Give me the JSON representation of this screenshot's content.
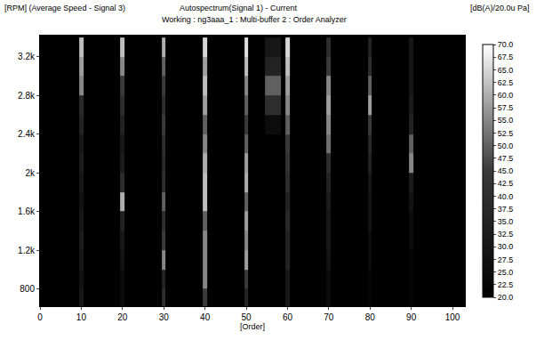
{
  "chart_data": {
    "type": "heatmap",
    "title": "Autospectrum(Signal 1) - Current",
    "subtitle": "Working : ng3aaa_1 : Multi-buffer 2 : Order Analyzer",
    "y_label": "[RPM] (Average Speed - Signal 3)",
    "x_label": "[Order]",
    "colorbar_title": "[dB(A)/20.0u Pa]",
    "x": [
      0,
      9,
      10,
      11,
      19,
      20,
      21,
      29,
      30,
      31,
      39,
      40,
      41,
      49,
      50,
      51,
      58,
      59,
      60,
      61,
      69,
      70,
      71,
      79,
      80,
      81,
      89,
      90,
      91,
      100
    ],
    "y": [
      700,
      900,
      1100,
      1300,
      1500,
      1700,
      1900,
      2100,
      2300,
      2500,
      2700,
      2900,
      3100,
      3300
    ],
    "z": [
      [
        20,
        20,
        30,
        20,
        20,
        25,
        20,
        20,
        40,
        20,
        20,
        45,
        20,
        20,
        35,
        20,
        20,
        20,
        30,
        20,
        20,
        25,
        20,
        20,
        22,
        20,
        20,
        22,
        20,
        20
      ],
      [
        20,
        20,
        28,
        20,
        20,
        25,
        20,
        20,
        35,
        20,
        20,
        55,
        20,
        20,
        45,
        20,
        20,
        20,
        30,
        20,
        20,
        25,
        20,
        20,
        22,
        20,
        20,
        22,
        20,
        20
      ],
      [
        20,
        20,
        30,
        20,
        20,
        28,
        20,
        20,
        55,
        20,
        20,
        55,
        20,
        20,
        58,
        20,
        20,
        20,
        35,
        20,
        20,
        28,
        20,
        20,
        25,
        20,
        20,
        22,
        20,
        20
      ],
      [
        20,
        20,
        32,
        20,
        20,
        30,
        20,
        20,
        45,
        20,
        20,
        55,
        20,
        20,
        55,
        20,
        20,
        20,
        35,
        20,
        20,
        30,
        20,
        20,
        25,
        20,
        20,
        25,
        20,
        20
      ],
      [
        20,
        20,
        30,
        20,
        20,
        35,
        20,
        20,
        40,
        20,
        20,
        50,
        20,
        20,
        58,
        20,
        20,
        20,
        38,
        20,
        20,
        30,
        20,
        20,
        28,
        20,
        20,
        25,
        20,
        20
      ],
      [
        20,
        20,
        28,
        20,
        20,
        60,
        20,
        20,
        50,
        20,
        20,
        62,
        20,
        20,
        50,
        20,
        20,
        20,
        35,
        20,
        20,
        32,
        20,
        20,
        28,
        20,
        20,
        28,
        20,
        20
      ],
      [
        20,
        20,
        30,
        20,
        20,
        40,
        20,
        20,
        40,
        20,
        20,
        62,
        20,
        20,
        60,
        20,
        20,
        20,
        40,
        20,
        20,
        35,
        20,
        20,
        30,
        20,
        20,
        32,
        20,
        20
      ],
      [
        20,
        20,
        32,
        20,
        20,
        32,
        20,
        20,
        38,
        20,
        20,
        60,
        20,
        20,
        58,
        20,
        20,
        20,
        42,
        20,
        20,
        40,
        20,
        20,
        35,
        20,
        20,
        55,
        20,
        20
      ],
      [
        20,
        20,
        30,
        20,
        20,
        30,
        20,
        20,
        40,
        20,
        20,
        55,
        20,
        20,
        50,
        20,
        20,
        20,
        45,
        20,
        20,
        52,
        20,
        20,
        38,
        20,
        20,
        50,
        20,
        20
      ],
      [
        20,
        20,
        35,
        20,
        20,
        35,
        20,
        20,
        45,
        20,
        20,
        50,
        20,
        20,
        45,
        20,
        25,
        20,
        50,
        20,
        20,
        55,
        20,
        20,
        45,
        20,
        20,
        35,
        20,
        20
      ],
      [
        20,
        20,
        38,
        20,
        20,
        40,
        20,
        20,
        40,
        20,
        20,
        58,
        20,
        20,
        50,
        20,
        40,
        20,
        55,
        20,
        20,
        58,
        20,
        20,
        58,
        20,
        20,
        32,
        20,
        20
      ],
      [
        20,
        20,
        55,
        20,
        20,
        45,
        20,
        20,
        45,
        20,
        20,
        62,
        20,
        20,
        55,
        20,
        50,
        20,
        58,
        20,
        20,
        55,
        20,
        20,
        50,
        20,
        20,
        30,
        20,
        20
      ],
      [
        20,
        20,
        58,
        20,
        20,
        55,
        20,
        20,
        50,
        20,
        20,
        58,
        20,
        20,
        62,
        20,
        35,
        20,
        62,
        20,
        20,
        45,
        20,
        20,
        40,
        20,
        20,
        30,
        20,
        20
      ],
      [
        20,
        20,
        62,
        20,
        20,
        62,
        20,
        20,
        60,
        20,
        20,
        65,
        20,
        20,
        66,
        20,
        30,
        20,
        65,
        20,
        20,
        40,
        20,
        20,
        35,
        20,
        20,
        30,
        20,
        20
      ]
    ],
    "xlim": [
      0,
      103
    ],
    "xticks": [
      0,
      10,
      20,
      30,
      40,
      50,
      60,
      70,
      80,
      90,
      100
    ],
    "ylim": [
      620,
      3420
    ],
    "yticks": [
      {
        "value": 800,
        "label": "800"
      },
      {
        "value": 1200,
        "label": "1.2k"
      },
      {
        "value": 1600,
        "label": "1.6k"
      },
      {
        "value": 2000,
        "label": "2k"
      },
      {
        "value": 2400,
        "label": "2.4k"
      },
      {
        "value": 2800,
        "label": "2.8k"
      },
      {
        "value": 3200,
        "label": "3.2k"
      }
    ],
    "zlim": [
      20,
      70
    ],
    "zticks": [
      {
        "value": 20,
        "label": "20.0"
      },
      {
        "value": 22.5,
        "label": "22.5"
      },
      {
        "value": 25,
        "label": "25.0"
      },
      {
        "value": 27.5,
        "label": "27.5"
      },
      {
        "value": 30,
        "label": "30.0"
      },
      {
        "value": 32.5,
        "label": "32.5"
      },
      {
        "value": 35,
        "label": "35.0"
      },
      {
        "value": 37.5,
        "label": "37.5"
      },
      {
        "value": 40,
        "label": "40.0"
      },
      {
        "value": 42.5,
        "label": "42.5"
      },
      {
        "value": 45,
        "label": "45.0"
      },
      {
        "value": 47.5,
        "label": "47.5"
      },
      {
        "value": 50,
        "label": "50.0"
      },
      {
        "value": 52.5,
        "label": "52.5"
      },
      {
        "value": 55,
        "label": "55.0"
      },
      {
        "value": 57.5,
        "label": "57.5"
      },
      {
        "value": 60,
        "label": "60.0"
      },
      {
        "value": 62.5,
        "label": "62.5"
      },
      {
        "value": 65,
        "label": "65.0"
      },
      {
        "value": 67.5,
        "label": "67.5"
      },
      {
        "value": 70,
        "label": "70.0"
      }
    ],
    "grid": false
  }
}
